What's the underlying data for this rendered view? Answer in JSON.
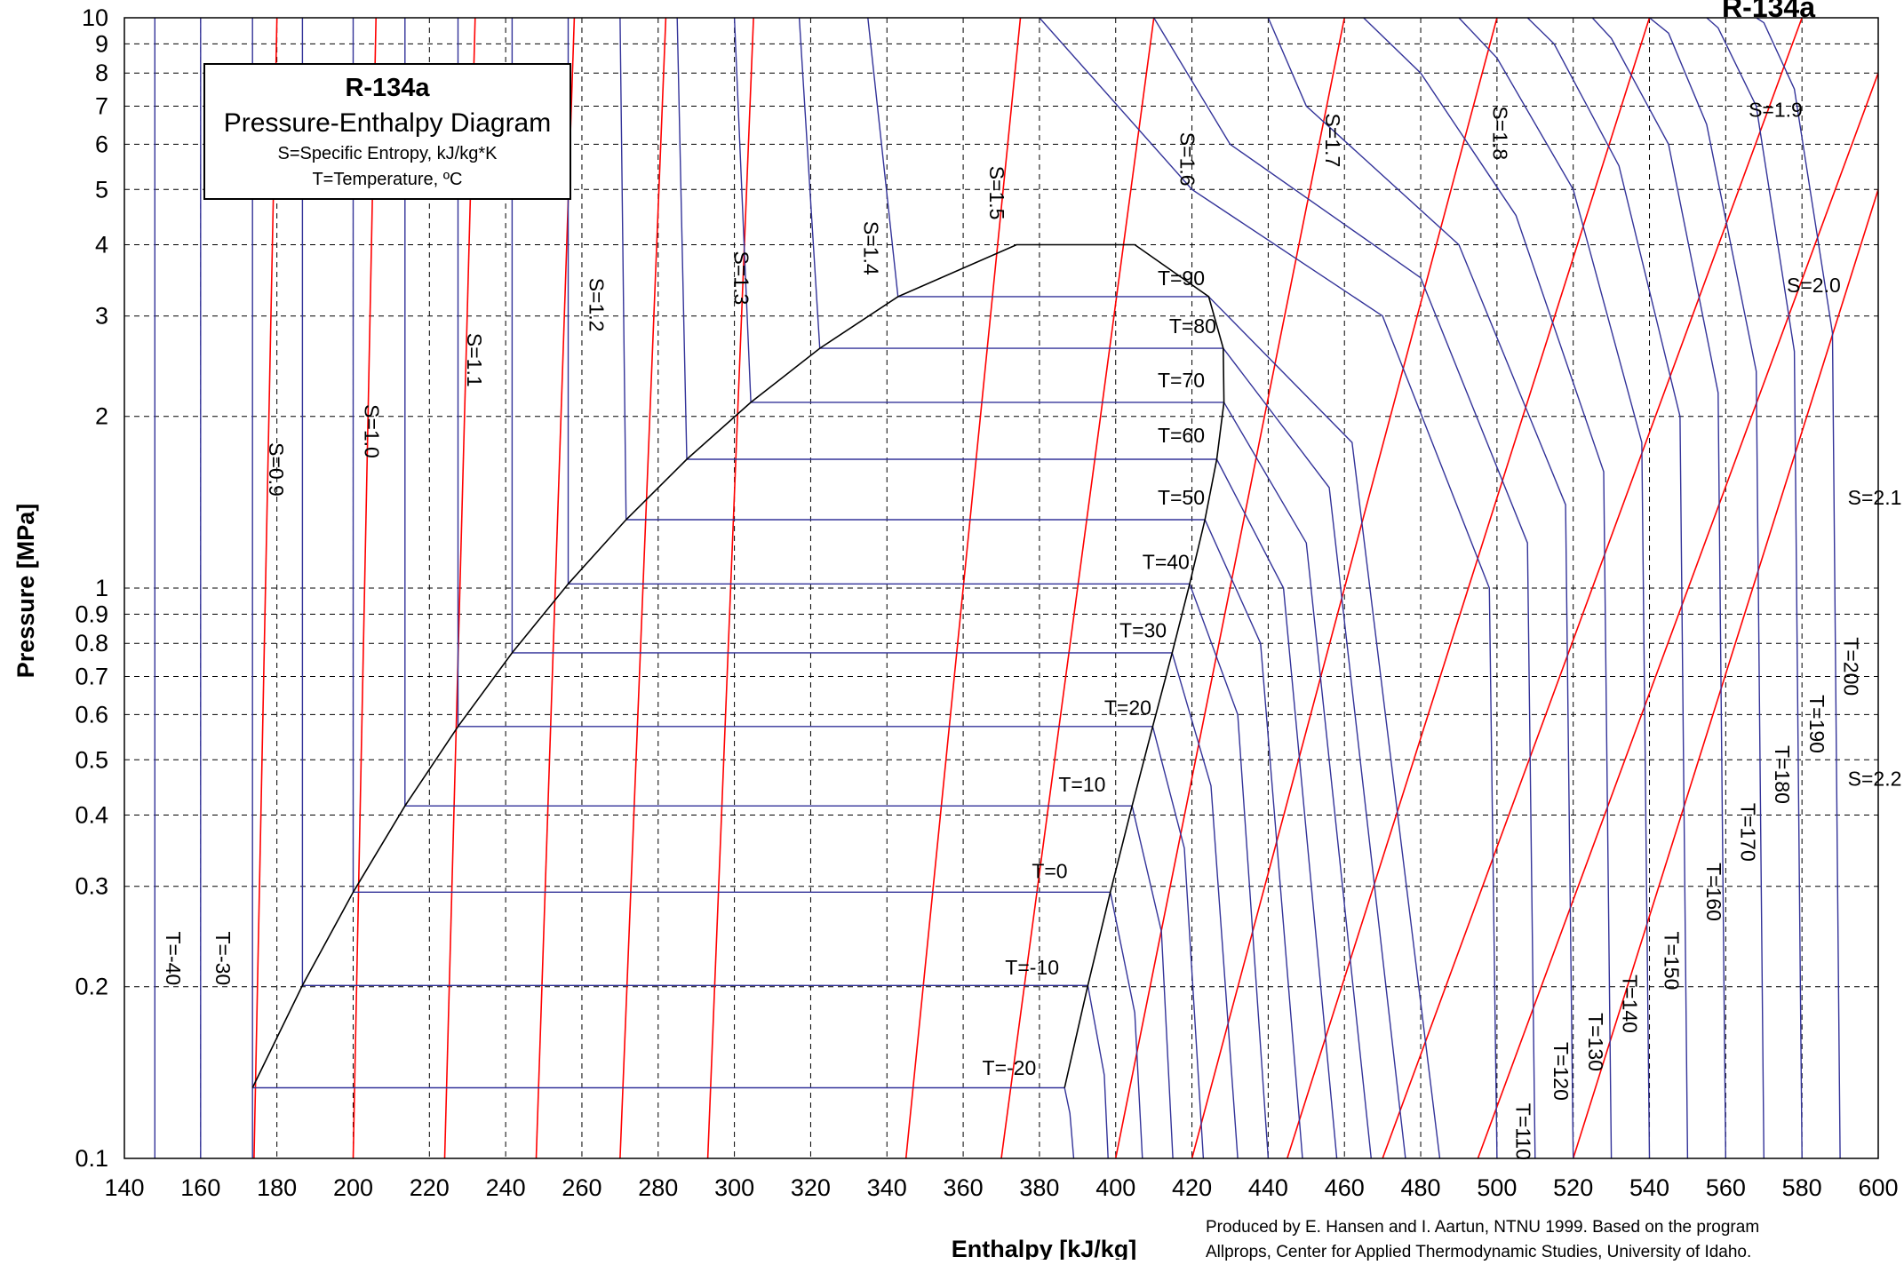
{
  "chart_data": {
    "type": "line",
    "title": "R-134a",
    "subtitle": "Pressure-Enthalpy Diagram",
    "notes": [
      "S=Specific Entropy, kJ/kg*K",
      "T=Temperature, ºC"
    ],
    "xlabel": "Enthalpy [kJ/kg]",
    "ylabel": "Pressure [MPa]",
    "xlim": [
      140,
      600
    ],
    "ylim": [
      0.1,
      10
    ],
    "yscale": "log",
    "grid": true,
    "x_ticks": [
      "140",
      "160",
      "180",
      "200",
      "220",
      "240",
      "260",
      "280",
      "300",
      "320",
      "340",
      "360",
      "380",
      "400",
      "420",
      "440",
      "460",
      "480",
      "500",
      "520",
      "540",
      "560",
      "580",
      "600"
    ],
    "y_ticks": [
      "0.1",
      "0.2",
      "0.3",
      "0.4",
      "0.5",
      "0.6",
      "0.7",
      "0.8",
      "0.9",
      "1",
      "2",
      "3",
      "4",
      "5",
      "6",
      "7",
      "8",
      "9",
      "10"
    ],
    "credit": [
      "Produced by E. Hansen and I. Aartun, NTNU 1999. Based on the program",
      "Allprops, Center for Applied Thermodynamic Studies, University of Idaho."
    ],
    "colors": {
      "isotherm": "#333399",
      "isentrope": "#ff0000",
      "dome": "#000000"
    },
    "saturation_liquid": [
      [
        173.6,
        0.133
      ],
      [
        186.7,
        0.201
      ],
      [
        200.0,
        0.293
      ],
      [
        213.6,
        0.415
      ],
      [
        227.5,
        0.572
      ],
      [
        241.7,
        0.77
      ],
      [
        256.4,
        1.017
      ],
      [
        271.6,
        1.318
      ],
      [
        287.5,
        1.682
      ],
      [
        304.3,
        2.117
      ],
      [
        322.4,
        2.633
      ],
      [
        342.9,
        3.244
      ],
      [
        374.0,
        4.0
      ]
    ],
    "saturation_vapor": [
      [
        386.6,
        0.133
      ],
      [
        392.7,
        0.201
      ],
      [
        398.6,
        0.293
      ],
      [
        404.3,
        0.415
      ],
      [
        409.7,
        0.572
      ],
      [
        414.8,
        0.77
      ],
      [
        419.4,
        1.017
      ],
      [
        423.4,
        1.318
      ],
      [
        426.5,
        1.682
      ],
      [
        428.4,
        2.117
      ],
      [
        428.2,
        2.633
      ],
      [
        424.4,
        3.244
      ],
      [
        405.0,
        4.0
      ]
    ],
    "isotherms": [
      {
        "label": "T=-40",
        "points": [
          [
            148,
            0.1
          ],
          [
            148,
            10
          ]
        ]
      },
      {
        "label": "T=-30",
        "points": [
          [
            160,
            0.1
          ],
          [
            160,
            10
          ]
        ]
      },
      {
        "label": "T=-20",
        "points": [
          [
            173.6,
            0.1
          ],
          [
            173.6,
            10
          ],
          [
            173.6,
            0.133
          ],
          [
            386.6,
            0.133
          ],
          [
            388,
            0.12
          ],
          [
            389,
            0.1
          ]
        ]
      },
      {
        "label": "T=-10",
        "points": [
          [
            186.7,
            0.2
          ],
          [
            186.7,
            10
          ],
          [
            186.7,
            0.201
          ],
          [
            392.7,
            0.201
          ],
          [
            397,
            0.14
          ],
          [
            398,
            0.1
          ]
        ]
      },
      {
        "label": "T=0",
        "points": [
          [
            200,
            0.293
          ],
          [
            200,
            10
          ],
          [
            200,
            0.293
          ],
          [
            398.6,
            0.293
          ],
          [
            405,
            0.18
          ],
          [
            407,
            0.1
          ]
        ]
      },
      {
        "label": "T=10",
        "points": [
          [
            213.6,
            0.415
          ],
          [
            213.6,
            10
          ],
          [
            213.6,
            0.415
          ],
          [
            404.3,
            0.415
          ],
          [
            412,
            0.25
          ],
          [
            415,
            0.1
          ]
        ]
      },
      {
        "label": "T=20",
        "points": [
          [
            227.5,
            0.572
          ],
          [
            227.5,
            10
          ],
          [
            227.5,
            0.572
          ],
          [
            409.7,
            0.572
          ],
          [
            418,
            0.35
          ],
          [
            423,
            0.1
          ]
        ]
      },
      {
        "label": "T=30",
        "points": [
          [
            241.7,
            0.77
          ],
          [
            241.7,
            10
          ],
          [
            241.7,
            0.77
          ],
          [
            414.8,
            0.77
          ],
          [
            425,
            0.45
          ],
          [
            432,
            0.1
          ]
        ]
      },
      {
        "label": "T=40",
        "points": [
          [
            256.4,
            1.017
          ],
          [
            256.4,
            10
          ],
          [
            256.4,
            1.017
          ],
          [
            419.4,
            1.017
          ],
          [
            432,
            0.6
          ],
          [
            440,
            0.1
          ]
        ]
      },
      {
        "label": "T=50",
        "points": [
          [
            271.6,
            1.318
          ],
          [
            270,
            10
          ],
          [
            271.6,
            1.318
          ],
          [
            423.4,
            1.318
          ],
          [
            438,
            0.8
          ],
          [
            449,
            0.1
          ]
        ]
      },
      {
        "label": "T=60",
        "points": [
          [
            287.5,
            1.682
          ],
          [
            285,
            10
          ],
          [
            287.5,
            1.682
          ],
          [
            426.5,
            1.682
          ],
          [
            444,
            1.0
          ],
          [
            458,
            0.1
          ]
        ]
      },
      {
        "label": "T=70",
        "points": [
          [
            304.3,
            2.117
          ],
          [
            300,
            10
          ],
          [
            304.3,
            2.117
          ],
          [
            428.4,
            2.117
          ],
          [
            450,
            1.2
          ],
          [
            467,
            0.1
          ]
        ]
      },
      {
        "label": "T=80",
        "points": [
          [
            322.4,
            2.633
          ],
          [
            317,
            10
          ],
          [
            322.4,
            2.633
          ],
          [
            428.2,
            2.633
          ],
          [
            456,
            1.5
          ],
          [
            476,
            0.1
          ]
        ]
      },
      {
        "label": "T=90",
        "points": [
          [
            342.9,
            3.244
          ],
          [
            335,
            10
          ],
          [
            342.9,
            3.244
          ],
          [
            424.4,
            3.244
          ],
          [
            462,
            1.8
          ],
          [
            485,
            0.1
          ]
        ]
      },
      {
        "label": "T=110",
        "points": [
          [
            500,
            0.1
          ],
          [
            498,
            1.0
          ],
          [
            470,
            3.0
          ],
          [
            420,
            5.0
          ],
          [
            380,
            10
          ]
        ]
      },
      {
        "label": "T=120",
        "points": [
          [
            510,
            0.1
          ],
          [
            508,
            1.2
          ],
          [
            480,
            3.5
          ],
          [
            430,
            6.0
          ],
          [
            410,
            10
          ]
        ]
      },
      {
        "label": "T=130",
        "points": [
          [
            520,
            0.1
          ],
          [
            518,
            1.4
          ],
          [
            490,
            4.0
          ],
          [
            450,
            7.0
          ],
          [
            440,
            10
          ]
        ]
      },
      {
        "label": "T=140",
        "points": [
          [
            530,
            0.1
          ],
          [
            528,
            1.6
          ],
          [
            505,
            4.5
          ],
          [
            480,
            8.0
          ],
          [
            465,
            10
          ]
        ]
      },
      {
        "label": "T=150",
        "points": [
          [
            540,
            0.1
          ],
          [
            538,
            1.8
          ],
          [
            520,
            5.0
          ],
          [
            500,
            8.5
          ],
          [
            490,
            10
          ]
        ]
      },
      {
        "label": "T=160",
        "points": [
          [
            550,
            0.1
          ],
          [
            548,
            2.0
          ],
          [
            532,
            5.5
          ],
          [
            515,
            9.0
          ],
          [
            508,
            10
          ]
        ]
      },
      {
        "label": "T=170",
        "points": [
          [
            560,
            0.1
          ],
          [
            558,
            2.2
          ],
          [
            545,
            6.0
          ],
          [
            530,
            9.2
          ],
          [
            525,
            10
          ]
        ]
      },
      {
        "label": "T=180",
        "points": [
          [
            570,
            0.1
          ],
          [
            568,
            2.4
          ],
          [
            555,
            6.5
          ],
          [
            545,
            9.4
          ],
          [
            540,
            10
          ]
        ]
      },
      {
        "label": "T=190",
        "points": [
          [
            580,
            0.1
          ],
          [
            578,
            2.6
          ],
          [
            568,
            7.0
          ],
          [
            558,
            9.6
          ],
          [
            555,
            10
          ]
        ]
      },
      {
        "label": "T=200",
        "points": [
          [
            590,
            0.1
          ],
          [
            588,
            2.8
          ],
          [
            578,
            7.5
          ],
          [
            570,
            9.8
          ],
          [
            568,
            10
          ]
        ]
      }
    ],
    "isentropes": [
      {
        "label": "S=0.9",
        "points": [
          [
            174,
            0.1
          ],
          [
            180,
            10
          ]
        ]
      },
      {
        "label": "S=1.0",
        "points": [
          [
            200,
            0.1
          ],
          [
            206,
            10
          ]
        ]
      },
      {
        "label": "S=1.1",
        "points": [
          [
            224,
            0.1
          ],
          [
            232,
            10
          ]
        ]
      },
      {
        "label": "S=1.2",
        "points": [
          [
            248,
            0.1
          ],
          [
            258,
            10
          ]
        ]
      },
      {
        "label": "S=1.3",
        "points": [
          [
            270,
            0.1
          ],
          [
            282,
            10
          ]
        ]
      },
      {
        "label": "S=1.4",
        "points": [
          [
            293,
            0.1
          ],
          [
            305,
            10
          ]
        ]
      },
      {
        "label": "S=1.5",
        "points": [
          [
            345,
            0.1
          ],
          [
            375,
            10
          ]
        ]
      },
      {
        "label": "S=1.6",
        "points": [
          [
            370,
            0.1
          ],
          [
            410,
            10
          ]
        ]
      },
      {
        "label": "S=1.7",
        "points": [
          [
            400,
            0.1
          ],
          [
            460,
            10
          ]
        ]
      },
      {
        "label": "S=1.8",
        "points": [
          [
            420,
            0.1
          ],
          [
            500,
            10
          ]
        ]
      },
      {
        "label": "S=1.9",
        "points": [
          [
            445,
            0.1
          ],
          [
            540,
            10
          ]
        ]
      },
      {
        "label": "S=2.0",
        "points": [
          [
            470,
            0.1
          ],
          [
            580,
            10
          ]
        ]
      },
      {
        "label": "S=2.1",
        "points": [
          [
            495,
            0.1
          ],
          [
            600,
            8
          ]
        ]
      },
      {
        "label": "S=2.2",
        "points": [
          [
            520,
            0.1
          ],
          [
            600,
            5
          ]
        ]
      }
    ],
    "isotherm_labels": [
      {
        "text": "T=90",
        "x": 411,
        "y": 3.4
      },
      {
        "text": "T=80",
        "x": 414,
        "y": 2.8
      },
      {
        "text": "T=70",
        "x": 411,
        "y": 2.25
      },
      {
        "text": "T=60",
        "x": 411,
        "y": 1.8
      },
      {
        "text": "T=50",
        "x": 411,
        "y": 1.4
      },
      {
        "text": "T=40",
        "x": 407,
        "y": 1.08
      },
      {
        "text": "T=30",
        "x": 401,
        "y": 0.82
      },
      {
        "text": "T=20",
        "x": 397,
        "y": 0.6
      },
      {
        "text": "T=10",
        "x": 385,
        "y": 0.44
      },
      {
        "text": "T=0",
        "x": 378,
        "y": 0.31
      },
      {
        "text": "T=-10",
        "x": 371,
        "y": 0.21
      },
      {
        "text": "T=-20",
        "x": 365,
        "y": 0.14
      }
    ],
    "isotherm_labels_vertical": [
      {
        "text": "T=-40",
        "x": 151,
        "y": 0.25
      },
      {
        "text": "T=-30",
        "x": 164,
        "y": 0.25
      },
      {
        "text": "T=110",
        "x": 505,
        "y": 0.125
      },
      {
        "text": "T=120",
        "x": 515,
        "y": 0.16
      },
      {
        "text": "T=130",
        "x": 524,
        "y": 0.18
      },
      {
        "text": "T=140",
        "x": 533,
        "y": 0.21
      },
      {
        "text": "T=150",
        "x": 544,
        "y": 0.25
      },
      {
        "text": "T=160",
        "x": 555,
        "y": 0.33
      },
      {
        "text": "T=170",
        "x": 564,
        "y": 0.42
      },
      {
        "text": "T=180",
        "x": 573,
        "y": 0.53
      },
      {
        "text": "T=190",
        "x": 582,
        "y": 0.65
      },
      {
        "text": "T=200",
        "x": 591,
        "y": 0.82
      }
    ],
    "isentrope_labels": [
      {
        "text": "S=0.9",
        "x": 178,
        "y": 1.8
      },
      {
        "text": "S=1.0",
        "x": 203,
        "y": 2.1
      },
      {
        "text": "S=1.1",
        "x": 230,
        "y": 2.8
      },
      {
        "text": "S=1.2",
        "x": 262,
        "y": 3.5
      },
      {
        "text": "S=1.3",
        "x": 300,
        "y": 3.9
      },
      {
        "text": "S=1.4",
        "x": 334,
        "y": 4.4
      },
      {
        "text": "S=1.5",
        "x": 367,
        "y": 5.5
      },
      {
        "text": "S=1.6",
        "x": 417,
        "y": 6.3
      },
      {
        "text": "S=1.7",
        "x": 455,
        "y": 6.8
      },
      {
        "text": "S=1.8",
        "x": 499,
        "y": 7.0
      },
      {
        "text": "S=1.9",
        "x": 566,
        "y": 6.7
      },
      {
        "text": "S=2.0",
        "x": 576,
        "y": 3.3
      },
      {
        "text": "S=2.1",
        "x": 592,
        "y": 1.4
      },
      {
        "text": "S=2.2",
        "x": 592,
        "y": 0.45
      }
    ]
  }
}
